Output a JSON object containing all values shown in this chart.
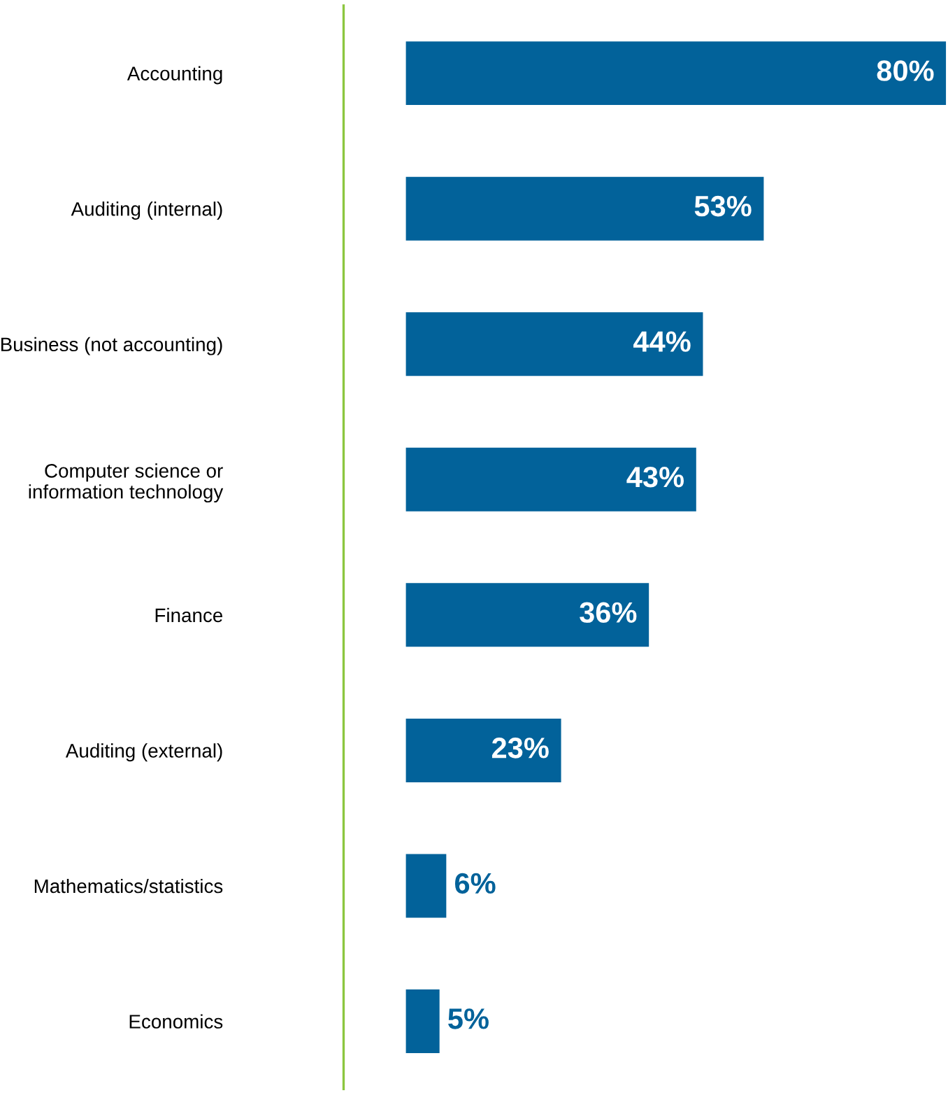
{
  "chart_data": {
    "type": "bar",
    "orientation": "horizontal",
    "categories": [
      "Accounting",
      "Auditing (internal)",
      "Business (not accounting)",
      "Computer science or\ninformation technology",
      "Finance",
      "Auditing (external)",
      "Mathematics/statistics",
      "Economics"
    ],
    "values": [
      80,
      53,
      44,
      43,
      36,
      23,
      6,
      5
    ],
    "value_labels": [
      "80%",
      "53%",
      "44%",
      "43%",
      "36%",
      "23%",
      "6%",
      "5%"
    ],
    "color": "#02629a",
    "grid": false,
    "legend": false
  }
}
